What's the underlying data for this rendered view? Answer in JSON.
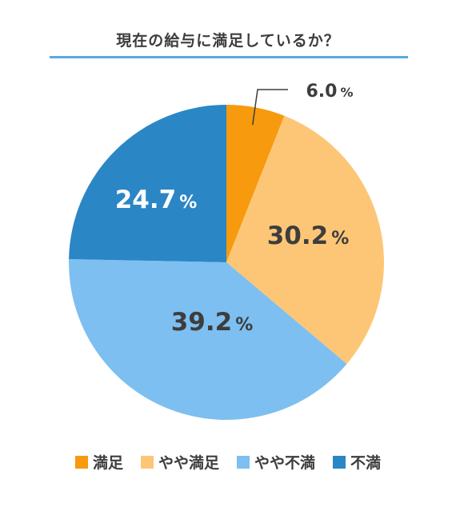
{
  "chart_data": {
    "type": "pie",
    "title": "現在の給与に満足しているか？",
    "legend_position": "bottom",
    "slices": [
      {
        "label": "満足",
        "value": 6.0,
        "display": "6.0",
        "color": "#f79a0d",
        "text_color": "#3d3d3d"
      },
      {
        "label": "やや満足",
        "value": 30.2,
        "display": "30.2",
        "color": "#fdc676",
        "text_color": "#3d3d3d"
      },
      {
        "label": "やや不満",
        "value": 39.2,
        "display": "39.2",
        "color": "#7dbff0",
        "text_color": "#3d3d3d"
      },
      {
        "label": "不満",
        "value": 24.7,
        "display": "24.7",
        "color": "#2b86c5",
        "text_color": "#ffffff"
      }
    ],
    "unit": "%"
  }
}
